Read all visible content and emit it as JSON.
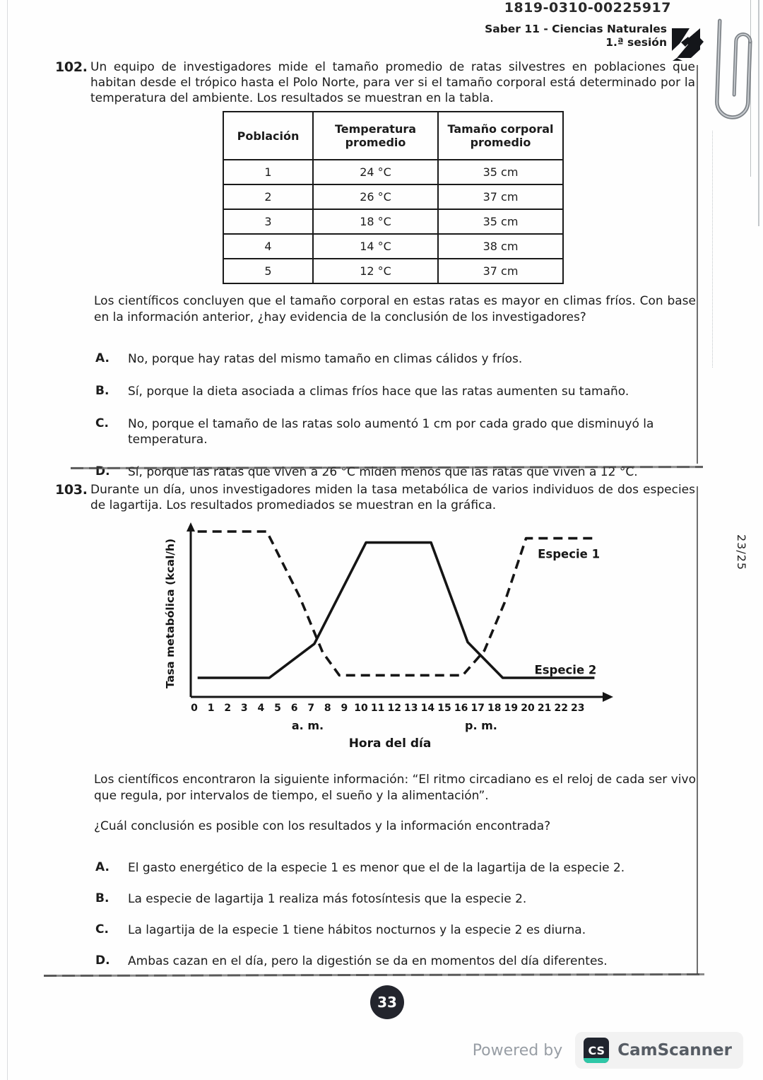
{
  "header": {
    "code": "1819-0310-00225917",
    "title": "Saber 11 - Ciencias Naturales",
    "session": "1.ª sesión"
  },
  "q102": {
    "number": "102.",
    "text": "Un equipo de investigadores mide el tamaño promedio de ratas silvestres en poblaciones que habitan desde el trópico hasta el Polo Norte, para ver si el tamaño corporal está determinado por la temperatura del ambiente. Los resultados se muestran en la tabla.",
    "table": {
      "headers": [
        "Población",
        "Temperatura promedio",
        "Tamaño corporal promedio"
      ],
      "rows": [
        [
          "1",
          "24 °C",
          "35 cm"
        ],
        [
          "2",
          "26 °C",
          "37 cm"
        ],
        [
          "3",
          "18 °C",
          "35 cm"
        ],
        [
          "4",
          "14 °C",
          "38 cm"
        ],
        [
          "5",
          "12 °C",
          "37 cm"
        ]
      ]
    },
    "conclusion": "Los científicos concluyen que el tamaño corporal en estas ratas es mayor en climas fríos. Con base en la información anterior, ¿hay evidencia de la conclusión de los investigadores?",
    "options": [
      {
        "letter": "A.",
        "text": "No, porque hay ratas del mismo tamaño en climas cálidos y fríos."
      },
      {
        "letter": "B.",
        "text": "Sí, porque la dieta asociada a climas fríos hace que las ratas aumenten su tamaño."
      },
      {
        "letter": "C.",
        "text": "No, porque el tamaño de las ratas solo aumentó 1 cm por cada grado que disminuyó la temperatura."
      },
      {
        "letter": "D.",
        "text": "Sí, porque las ratas que viven a 26 °C miden menos que las ratas que viven a 12 °C."
      }
    ]
  },
  "q103": {
    "number": "103.",
    "text": "Durante un día, unos investigadores miden la tasa metabólica de varios individuos de dos especies de lagartija. Los resultados promediados se muestran en la gráfica.",
    "info": "Los científicos encontraron la siguiente información: “El ritmo circadiano es el reloj de cada ser vivo que regula, por intervalos de tiempo, el sueño y la alimentación”.",
    "question": "¿Cuál conclusión es posible con los resultados y la información encontrada?",
    "options": [
      {
        "letter": "A.",
        "text": "El gasto energético de la especie 1 es menor que el de la lagartija de la especie 2."
      },
      {
        "letter": "B.",
        "text": "La especie de lagartija 1 realiza más fotosíntesis que la especie 2."
      },
      {
        "letter": "C.",
        "text": "La lagartija de la especie 1 tiene hábitos nocturnos y la especie 2 es diurna."
      },
      {
        "letter": "D.",
        "text": "Ambas cazan en el día, pero la digestión se da en momentos del día diferentes."
      }
    ]
  },
  "chart_data": {
    "type": "line",
    "title": "",
    "xlabel": "Hora del día",
    "ylabel": "Tasa metabólica (kcal/h)",
    "xlim": [
      0,
      24
    ],
    "ylim": [
      0,
      10
    ],
    "grid": false,
    "x_ticks": [
      "0",
      "1",
      "2",
      "3",
      "4",
      "5",
      "6",
      "7",
      "8",
      "9",
      "10",
      "11",
      "12",
      "13",
      "14",
      "15",
      "16",
      "17",
      "18",
      "19",
      "20",
      "21",
      "22",
      "23"
    ],
    "x_sublabels": [
      {
        "text": "a. m.",
        "hour": 6.8
      },
      {
        "text": "p. m.",
        "hour": 17.2
      }
    ],
    "series": [
      {
        "name": "Especie 1",
        "style": "dashed",
        "points": [
          [
            0.2,
            10
          ],
          [
            4.35,
            10
          ],
          [
            6.3,
            6.2
          ],
          [
            7.7,
            2.9
          ],
          [
            8.7,
            1.55
          ],
          [
            16.1,
            1.55
          ],
          [
            17.4,
            3.0
          ],
          [
            18.6,
            5.8
          ],
          [
            19.9,
            9.6
          ],
          [
            24,
            9.6
          ]
        ]
      },
      {
        "name": "Especie 2",
        "style": "solid",
        "points": [
          [
            0.2,
            1.4
          ],
          [
            4.5,
            1.4
          ],
          [
            7.2,
            3.4
          ],
          [
            10.3,
            9.35
          ],
          [
            14.2,
            9.35
          ],
          [
            16.4,
            3.5
          ],
          [
            18.5,
            1.4
          ],
          [
            24,
            1.4
          ]
        ]
      }
    ],
    "legend_labels": [
      {
        "text": "Especie 1",
        "x": 20.6,
        "y": 8.45
      },
      {
        "text": "Especie 2",
        "x": 20.4,
        "y": 1.62
      }
    ],
    "line_color": "#151515"
  },
  "footer": {
    "page_number": "33",
    "sheet_indicator": "23/25",
    "powered_by": "Powered by",
    "scanner_icon": "CS",
    "scanner_brand": "CamScanner"
  }
}
